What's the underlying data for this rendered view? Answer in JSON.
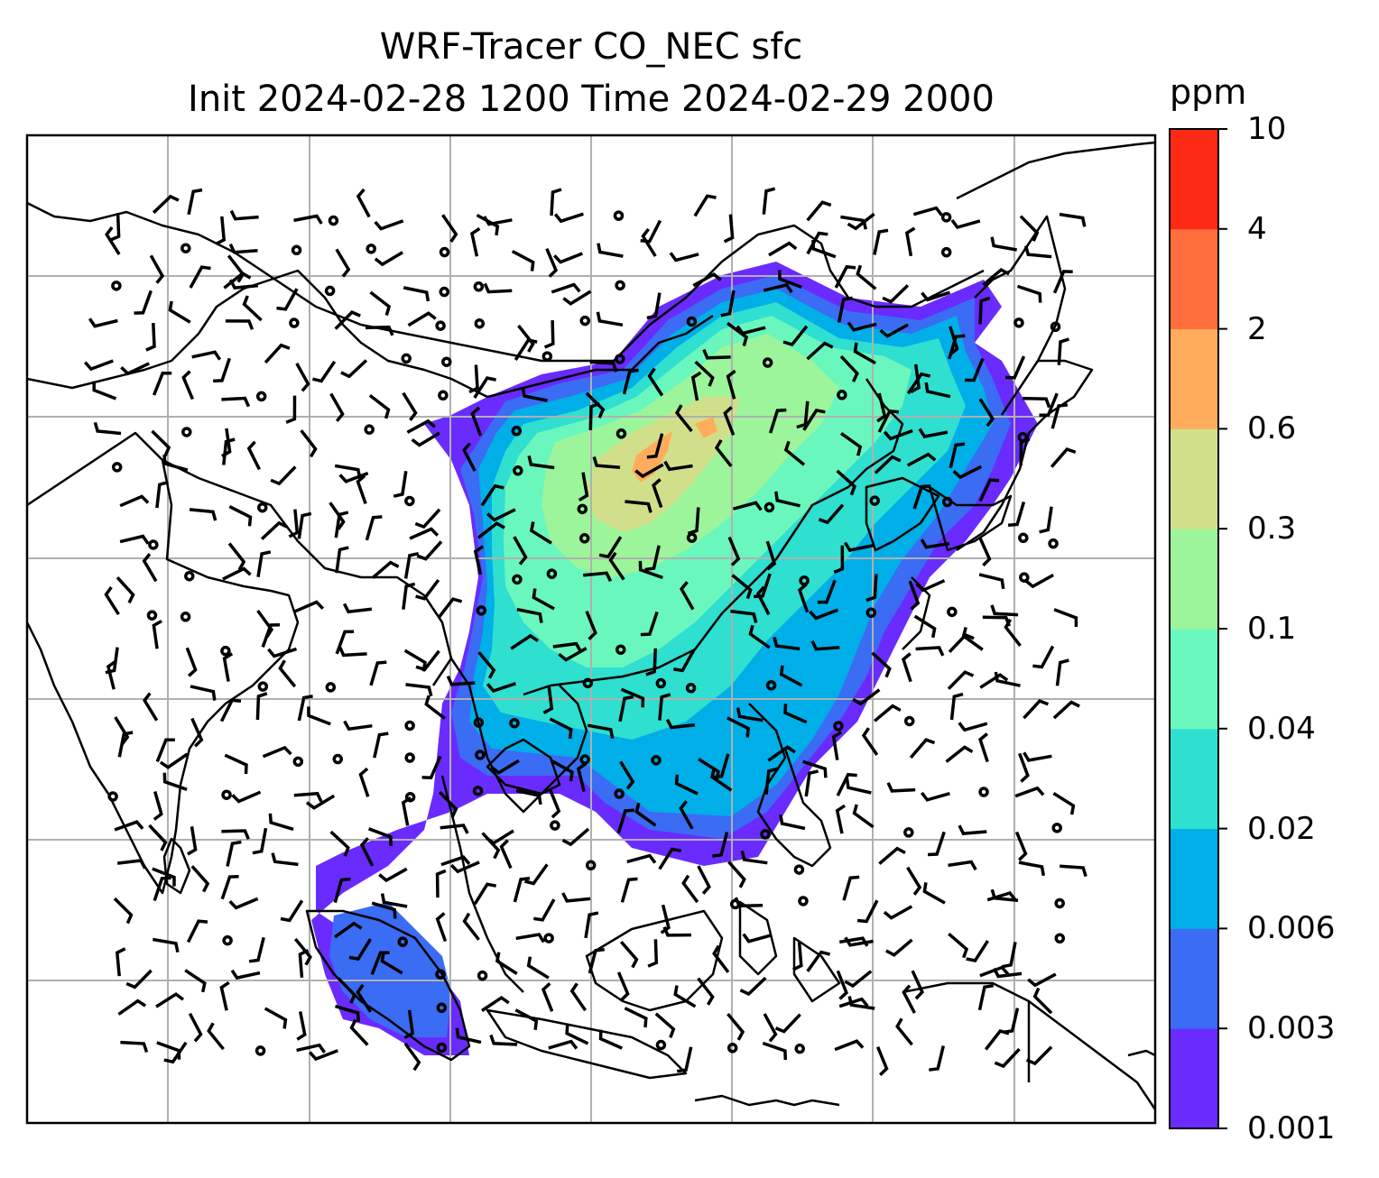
{
  "title": {
    "line1": "WRF-Tracer CO_NEC sfc",
    "line2": "Init 2024-02-28 1200 Time 2024-02-29 2000"
  },
  "colorbar": {
    "unit": "ppm",
    "levels": [
      "0.001",
      "0.003",
      "0.006",
      "0.02",
      "0.04",
      "0.1",
      "0.3",
      "0.6",
      "2",
      "4",
      "10"
    ],
    "colors": [
      "#6a2bff",
      "#3a6cf4",
      "#00aee8",
      "#2fdfd0",
      "#6af7bd",
      "#9cf59a",
      "#d2df8a",
      "#ffad5c",
      "#ff6f3d",
      "#ff2a16"
    ]
  },
  "map": {
    "gridlines": true,
    "grid_color": "#b0b0b0",
    "field": "CO_NEC surface tracer concentration",
    "overlays": [
      "coastlines",
      "country-borders",
      "wind-barbs"
    ]
  }
}
